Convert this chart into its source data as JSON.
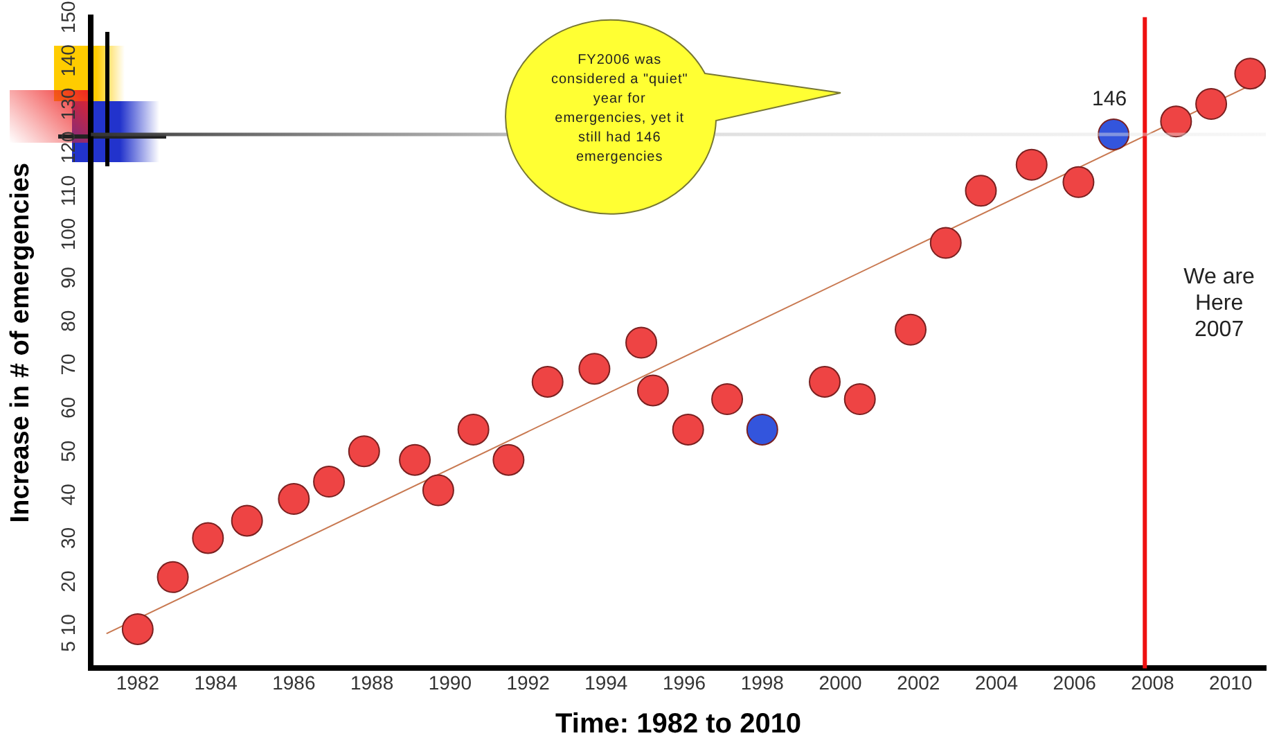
{
  "chart_data": {
    "type": "scatter",
    "xlabel": "Time: 1982 to 2010",
    "ylabel": "Increase in # of emergencies",
    "xlim": [
      1980.8,
      2010.9
    ],
    "xticks": [
      1982,
      1984,
      1986,
      1988,
      1990,
      1992,
      1994,
      1996,
      1998,
      2000,
      2002,
      2004,
      2006,
      2008,
      2010
    ],
    "ylim": [
      0,
      150
    ],
    "yticks": [
      5,
      10,
      20,
      30,
      40,
      50,
      60,
      70,
      80,
      90,
      100,
      110,
      120,
      130,
      140,
      150
    ],
    "grid": false,
    "legend": false,
    "series": [
      {
        "color": "#ee4444",
        "marker": "circle",
        "x": [
          1982.0,
          1982.9,
          1983.8,
          1984.8,
          1986.0,
          1986.9,
          1987.8,
          1989.1,
          1989.7,
          1990.6,
          1991.5,
          1992.5,
          1993.7,
          1994.9,
          1995.2,
          1996.1,
          1997.1,
          1999.6,
          2000.5,
          2001.8,
          2002.7,
          2003.6,
          2004.9,
          2006.1,
          2008.6,
          2009.5,
          2010.5
        ],
        "values": [
          9,
          21,
          30,
          34,
          39,
          43,
          50,
          48,
          41,
          55,
          48,
          66,
          69,
          75,
          64,
          55,
          62,
          66,
          62,
          78,
          98,
          110,
          116,
          112,
          126,
          130,
          137
        ]
      },
      {
        "color": "#3355dd",
        "marker": "circle",
        "x": [
          1998.0,
          2007.0
        ],
        "values": [
          55,
          123
        ]
      },
      {
        "type": "line",
        "color": "#c87850",
        "x": [
          1981.2,
          2010.9
        ],
        "values": [
          8,
          136
        ]
      }
    ],
    "ref_lines": [
      {
        "axis": "x",
        "value": 2007.8,
        "label": "We are\nHere\n2007",
        "color": "#ee1111"
      },
      {
        "axis": "y",
        "value": 123,
        "color": "#333333"
      }
    ],
    "annotations": [
      "FY2006 was considered a \"quiet\" year for emergencies, yet it still had 146 emergencies",
      {
        "text": "146",
        "x": 2007.0,
        "y": 123
      }
    ]
  }
}
